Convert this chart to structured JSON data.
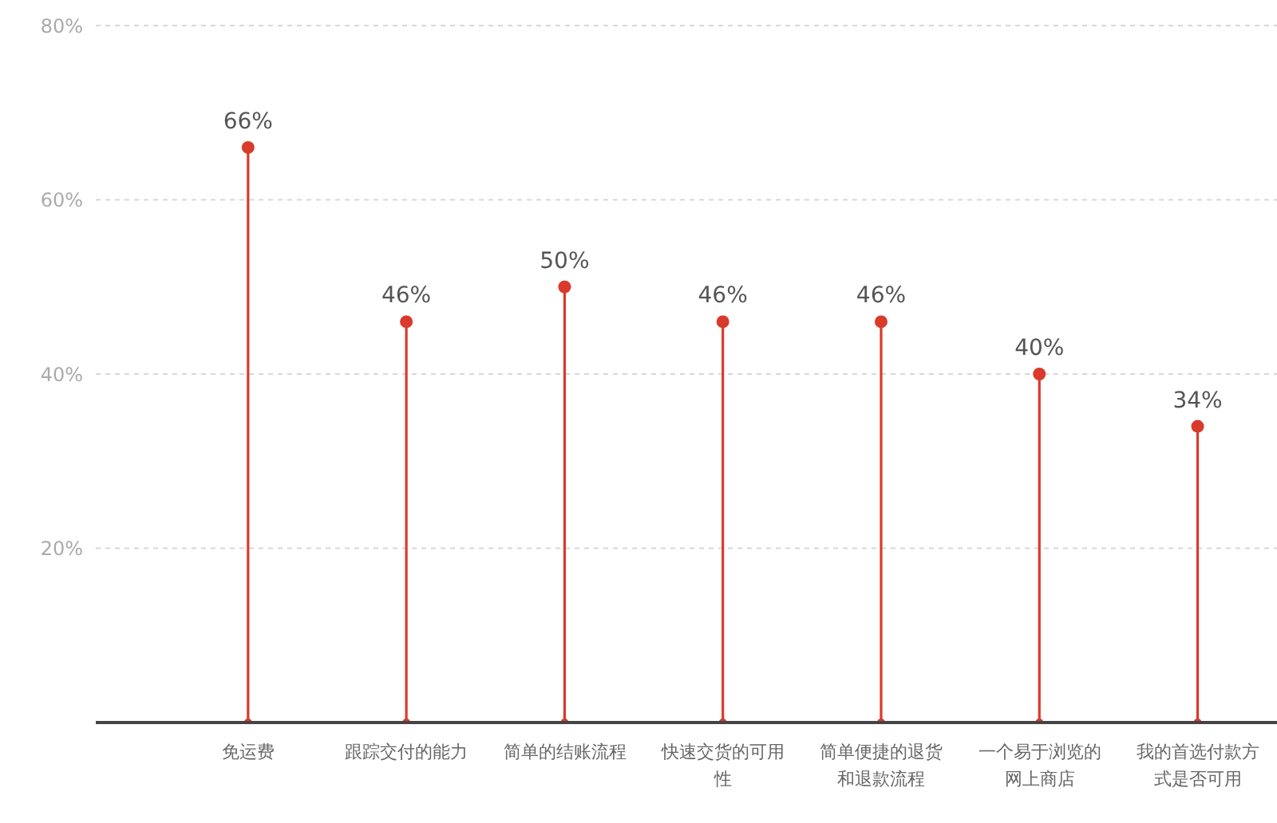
{
  "chart_data": {
    "type": "lollipop",
    "categories": [
      "免运费",
      "跟踪交付的能力",
      "简单的结账流程",
      "快速交货的可用性",
      "简单便捷的退货和退款流程",
      "一个易于浏览的网上商店",
      "我的首选付款方式是否可用"
    ],
    "values": [
      66,
      46,
      50,
      46,
      46,
      40,
      34
    ],
    "color": "#d93a2b",
    "value_labels": [
      "66%",
      "46%",
      "50%",
      "46%",
      "46%",
      "40%",
      "34%"
    ],
    "ylim": [
      0,
      80
    ],
    "yticks": [
      {
        "value": 20,
        "label": "20%"
      },
      {
        "value": 40,
        "label": "40%"
      },
      {
        "value": 60,
        "label": "60%"
      },
      {
        "value": 80,
        "label": "80%"
      }
    ],
    "grid": "y",
    "marker": "circle"
  }
}
